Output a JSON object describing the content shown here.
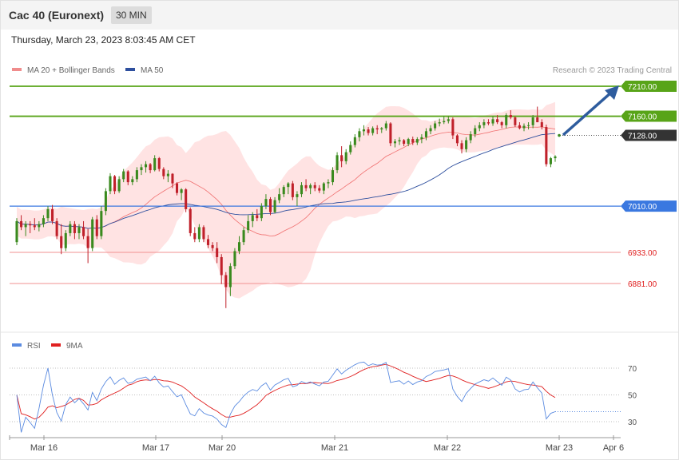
{
  "header": {
    "title": "Cac 40 (Euronext)",
    "interval": "30 MIN"
  },
  "datetime": "Thursday, March 23, 2023 8:03:45 AM CET",
  "credit": "Research © 2023 Trading Central",
  "colors": {
    "up": "#3a8a1e",
    "down": "#c0202a",
    "band": "#ffdede",
    "ma20": "#f07070",
    "ma50": "#2e4f9e",
    "resistance": "#58a418",
    "pivot": "#3a78e0",
    "support": "#f09090",
    "current": "#333333",
    "arrow": "#2e5c9e",
    "rsi": "#5b8be0",
    "rsi_ma": "#e02020"
  },
  "chart_data": [
    {
      "type": "candlestick",
      "legend": [
        {
          "label": "MA 20 + Bollinger Bands",
          "color": "#f08c8c"
        },
        {
          "label": "MA 50",
          "color": "#2e4f9e"
        }
      ],
      "levels": [
        {
          "label": "7210.00",
          "value": 7210,
          "kind": "resistance"
        },
        {
          "label": "7160.00",
          "value": 7160,
          "kind": "resistance"
        },
        {
          "label": "7128.00",
          "value": 7128,
          "kind": "current"
        },
        {
          "label": "7010.00",
          "value": 7010,
          "kind": "pivot"
        },
        {
          "label": "6933.00",
          "value": 6933,
          "kind": "support"
        },
        {
          "label": "6881.00",
          "value": 6881,
          "kind": "support"
        }
      ],
      "ylim": [
        6807,
        7250
      ],
      "x_ticks": [
        "Mar 16",
        "Mar 17",
        "Mar 20",
        "Mar 21",
        "Mar 22",
        "Mar 23",
        "Apr 6"
      ],
      "candles": [
        [
          6950,
          6990,
          6945,
          6985
        ],
        [
          6985,
          6995,
          6970,
          6975
        ],
        [
          6975,
          6985,
          6960,
          6980
        ],
        [
          6980,
          6985,
          6965,
          6978
        ],
        [
          6978,
          6990,
          6970,
          6975
        ],
        [
          6975,
          6985,
          6968,
          6980
        ],
        [
          6980,
          6995,
          6975,
          6990
        ],
        [
          6990,
          7010,
          6985,
          7005
        ],
        [
          7005,
          7012,
          6980,
          6985
        ],
        [
          6985,
          6990,
          6955,
          6960
        ],
        [
          6960,
          6980,
          6930,
          6940
        ],
        [
          6940,
          6970,
          6935,
          6965
        ],
        [
          6965,
          6985,
          6960,
          6980
        ],
        [
          6980,
          6985,
          6955,
          6965
        ],
        [
          6965,
          6980,
          6955,
          6975
        ],
        [
          6975,
          6985,
          6955,
          6960
        ],
        [
          6960,
          6972,
          6915,
          6940
        ],
        [
          6940,
          6992,
          6935,
          6988
        ],
        [
          6988,
          6995,
          6955,
          6960
        ],
        [
          6960,
          7010,
          6955,
          7002
        ],
        [
          7002,
          7040,
          6995,
          7035
        ],
        [
          7035,
          7065,
          7030,
          7060
        ],
        [
          7060,
          7062,
          7030,
          7035
        ],
        [
          7035,
          7060,
          7032,
          7055
        ],
        [
          7055,
          7072,
          7050,
          7068
        ],
        [
          7068,
          7070,
          7045,
          7050
        ],
        [
          7050,
          7060,
          7045,
          7055
        ],
        [
          7055,
          7075,
          7050,
          7070
        ],
        [
          7070,
          7080,
          7062,
          7075
        ],
        [
          7075,
          7085,
          7066,
          7080
        ],
        [
          7080,
          7082,
          7065,
          7070
        ],
        [
          7070,
          7095,
          7068,
          7090
        ],
        [
          7090,
          7092,
          7068,
          7072
        ],
        [
          7072,
          7075,
          7055,
          7060
        ],
        [
          7060,
          7070,
          7050,
          7064
        ],
        [
          7064,
          7065,
          7040,
          7048
        ],
        [
          7048,
          7050,
          7028,
          7032
        ],
        [
          7032,
          7040,
          7020,
          7038
        ],
        [
          7038,
          7040,
          7000,
          7005
        ],
        [
          7005,
          7008,
          6960,
          6965
        ],
        [
          6965,
          6975,
          6950,
          6955
        ],
        [
          6955,
          6980,
          6950,
          6975
        ],
        [
          6975,
          6978,
          6950,
          6955
        ],
        [
          6955,
          6962,
          6940,
          6945
        ],
        [
          6945,
          6950,
          6935,
          6940
        ],
        [
          6940,
          6950,
          6915,
          6925
        ],
        [
          6925,
          6930,
          6880,
          6895
        ],
        [
          6895,
          6900,
          6840,
          6875
        ],
        [
          6875,
          6915,
          6860,
          6910
        ],
        [
          6910,
          6940,
          6905,
          6935
        ],
        [
          6935,
          6960,
          6930,
          6950
        ],
        [
          6950,
          6975,
          6945,
          6970
        ],
        [
          6970,
          6995,
          6965,
          6985
        ],
        [
          6985,
          7000,
          6975,
          6995
        ],
        [
          6995,
          7005,
          6985,
          6990
        ],
        [
          6990,
          7015,
          6985,
          7010
        ],
        [
          7010,
          7030,
          7005,
          7022
        ],
        [
          7022,
          7025,
          6995,
          7000
        ],
        [
          7000,
          7025,
          6998,
          7020
        ],
        [
          7020,
          7040,
          7015,
          7030
        ],
        [
          7030,
          7045,
          7025,
          7042
        ],
        [
          7042,
          7050,
          7030,
          7048
        ],
        [
          7048,
          7052,
          7020,
          7025
        ],
        [
          7025,
          7035,
          7010,
          7030
        ],
        [
          7030,
          7050,
          7025,
          7045
        ],
        [
          7045,
          7055,
          7035,
          7040
        ],
        [
          7040,
          7048,
          7030,
          7045
        ],
        [
          7045,
          7050,
          7035,
          7040
        ],
        [
          7040,
          7045,
          7032,
          7036
        ],
        [
          7036,
          7050,
          7030,
          7048
        ],
        [
          7048,
          7055,
          7040,
          7050
        ],
        [
          7050,
          7075,
          7045,
          7070
        ],
        [
          7070,
          7100,
          7065,
          7095
        ],
        [
          7095,
          7110,
          7075,
          7085
        ],
        [
          7085,
          7105,
          7080,
          7100
        ],
        [
          7100,
          7118,
          7096,
          7112
        ],
        [
          7112,
          7130,
          7108,
          7125
        ],
        [
          7125,
          7140,
          7118,
          7135
        ],
        [
          7135,
          7145,
          7128,
          7138
        ],
        [
          7138,
          7142,
          7128,
          7132
        ],
        [
          7132,
          7143,
          7128,
          7140
        ],
        [
          7140,
          7145,
          7130,
          7138
        ],
        [
          7138,
          7142,
          7132,
          7140
        ],
        [
          7140,
          7152,
          7136,
          7148
        ],
        [
          7148,
          7150,
          7110,
          7115
        ],
        [
          7115,
          7122,
          7108,
          7118
        ],
        [
          7118,
          7125,
          7112,
          7120
        ],
        [
          7120,
          7122,
          7110,
          7114
        ],
        [
          7114,
          7124,
          7110,
          7122
        ],
        [
          7122,
          7126,
          7112,
          7116
        ],
        [
          7116,
          7125,
          7112,
          7122
        ],
        [
          7122,
          7130,
          7115,
          7125
        ],
        [
          7125,
          7140,
          7120,
          7135
        ],
        [
          7135,
          7145,
          7130,
          7140
        ],
        [
          7140,
          7152,
          7136,
          7148
        ],
        [
          7148,
          7156,
          7143,
          7150
        ],
        [
          7150,
          7160,
          7147,
          7152
        ],
        [
          7152,
          7160,
          7148,
          7155
        ],
        [
          7155,
          7158,
          7122,
          7128
        ],
        [
          7128,
          7130,
          7110,
          7115
        ],
        [
          7115,
          7120,
          7098,
          7105
        ],
        [
          7105,
          7125,
          7100,
          7120
        ],
        [
          7120,
          7135,
          7115,
          7130
        ],
        [
          7130,
          7145,
          7125,
          7140
        ],
        [
          7140,
          7150,
          7135,
          7145
        ],
        [
          7145,
          7155,
          7140,
          7150
        ],
        [
          7150,
          7155,
          7145,
          7148
        ],
        [
          7148,
          7160,
          7144,
          7155
        ],
        [
          7155,
          7162,
          7147,
          7150
        ],
        [
          7150,
          7152,
          7140,
          7145
        ],
        [
          7145,
          7165,
          7140,
          7162
        ],
        [
          7162,
          7170,
          7155,
          7158
        ],
        [
          7158,
          7160,
          7142,
          7145
        ],
        [
          7145,
          7150,
          7138,
          7140
        ],
        [
          7140,
          7148,
          7135,
          7144
        ],
        [
          7144,
          7150,
          7138,
          7145
        ],
        [
          7145,
          7162,
          7140,
          7158
        ],
        [
          7158,
          7176,
          7150,
          7150
        ],
        [
          7150,
          7155,
          7138,
          7142
        ],
        [
          7142,
          7146,
          7076,
          7080
        ],
        [
          7080,
          7092,
          7075,
          7090
        ],
        [
          7090,
          7095,
          7084,
          7093
        ]
      ]
    },
    {
      "type": "line",
      "legend": [
        {
          "label": "RSI",
          "color": "#5b8be0"
        },
        {
          "label": "9MA",
          "color": "#e02020"
        }
      ],
      "y_ticks": [
        "70",
        "50",
        "30"
      ],
      "levels": [
        70,
        50,
        30
      ],
      "ylim": [
        20,
        76
      ]
    }
  ]
}
